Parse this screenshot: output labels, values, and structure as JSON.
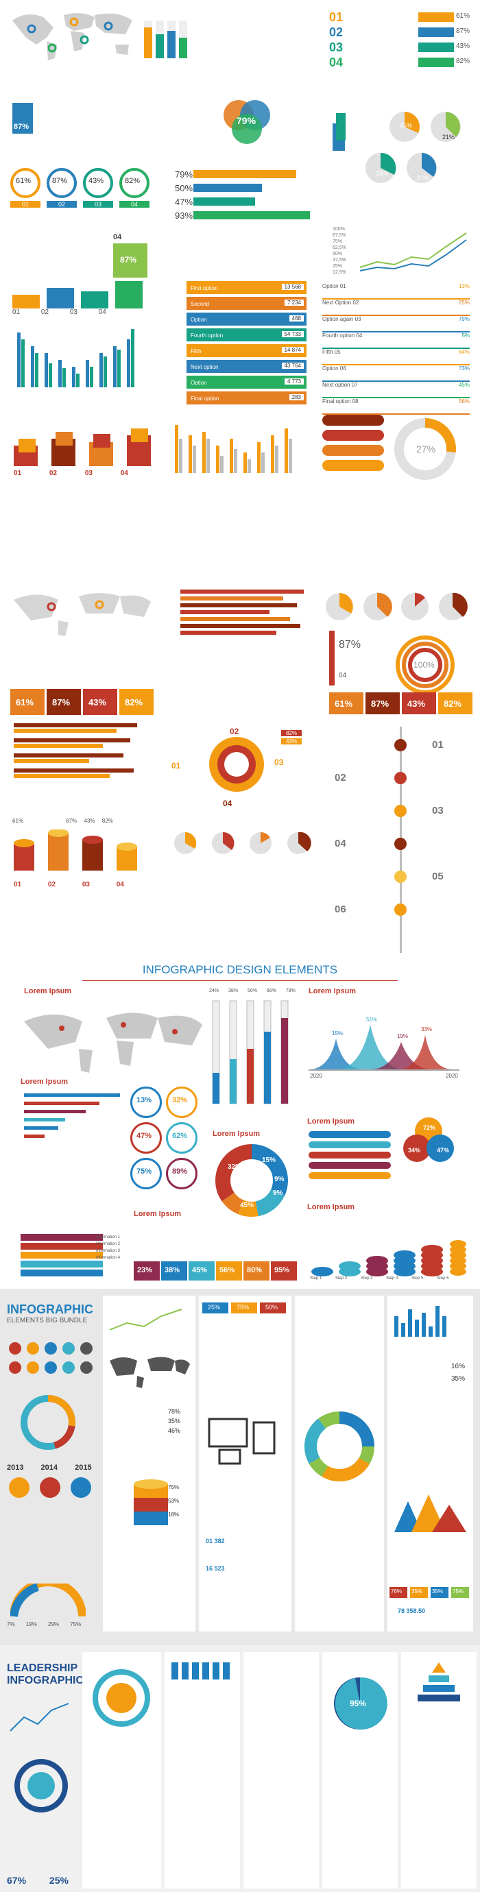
{
  "sheet1": {
    "numbers_list": [
      "01",
      "02",
      "03",
      "04"
    ],
    "right_percents": [
      "61%",
      "87%",
      "43%",
      "82%"
    ],
    "badge_87": "87%",
    "venn_percent": "79%",
    "pies_percents": [
      "45%",
      "21%",
      "33%",
      "27%"
    ],
    "donut_percents": [
      "61%",
      "87%",
      "43%",
      "82%"
    ],
    "donut_steps": [
      "01",
      "02",
      "03",
      "04"
    ],
    "people_percents": [
      "79%",
      "50%",
      "47%",
      "93%"
    ],
    "bar_badge": "87%",
    "bar_badge_num": "04",
    "line_y_ticks": [
      "100%",
      "87,5%",
      "75%",
      "62,5%",
      "50%",
      "37,5%",
      "25%",
      "12,5%",
      "0%"
    ],
    "line_x_ticks": [
      "01",
      "02",
      "03",
      "04",
      "05",
      "06"
    ],
    "grid_steps": [
      "01",
      "02",
      "03",
      "04"
    ],
    "options": [
      {
        "label": "First option",
        "value": "13 568",
        "color": "#f39c12"
      },
      {
        "label": "Second",
        "value": "7 234",
        "color": "#e67e22"
      },
      {
        "label": "Option",
        "value": "468",
        "color": "#2980b9"
      },
      {
        "label": "Fourth option",
        "value": "54 733",
        "color": "#16a085"
      },
      {
        "label": "Fifth",
        "value": "14 874",
        "color": "#f39c12"
      },
      {
        "label": "Next option",
        "value": "43 764",
        "color": "#2c7fb8"
      },
      {
        "label": "Option",
        "value": "4 773",
        "color": "#27ae60"
      },
      {
        "label": "Final option",
        "value": "283",
        "color": "#e67e22"
      }
    ],
    "option_bars": [
      {
        "label": "Option 01",
        "value": "13%"
      },
      {
        "label": "Next Option 02",
        "value": "25%"
      },
      {
        "label": "Option again 03",
        "value": "79%"
      },
      {
        "label": "Fourth option 04",
        "value": "5%"
      },
      {
        "label": "Fifth 05",
        "value": "64%"
      },
      {
        "label": "Option 06",
        "value": "73%"
      },
      {
        "label": "Next option 07",
        "value": "45%"
      },
      {
        "label": "Final option 08",
        "value": "56%"
      }
    ]
  },
  "sheet2": {
    "cubes_steps": [
      "01",
      "02",
      "03",
      "04"
    ],
    "donut_pct": "27%",
    "badge_87": "87%",
    "badge_04": "04",
    "ring_pct": "100%",
    "stripe_pcts": [
      "61%",
      "87%",
      "43%",
      "82%"
    ],
    "stripe_pcts_right": [
      "61%",
      "87%",
      "43%",
      "82%"
    ],
    "flower_steps": [
      "01",
      "02",
      "03",
      "04"
    ],
    "flower_pcts": [
      "82%",
      "43%"
    ],
    "timeline": [
      "01",
      "02",
      "03",
      "04",
      "05",
      "06"
    ],
    "hbar_pcts": [
      "61%",
      "87%",
      "43%",
      "82%"
    ],
    "cyl_steps": [
      "01",
      "02",
      "03",
      "04"
    ]
  },
  "sheet3": {
    "title": "INFOGRAPHIC DESIGN ELEMENTS",
    "lorem": "Lorem Ipsum",
    "circle_pcts": [
      "13%",
      "32%",
      "47%",
      "62%",
      "75%",
      "89%"
    ],
    "donut_pcts": [
      "32%",
      "15%",
      "9%",
      "9%",
      "45%"
    ],
    "arrow_pcts": [
      "23%",
      "38%",
      "45%",
      "56%",
      "80%",
      "95%"
    ],
    "mountain_pcts": [
      "15%",
      "51%",
      "33%",
      "19%"
    ],
    "mountain_years": [
      "2020",
      "2020"
    ],
    "drop_pcts": [
      "72%",
      "34%",
      "47%"
    ],
    "step_labels": [
      "Step 1",
      "Step 2",
      "Step 3",
      "Step 4",
      "Step 5",
      "Step 6"
    ],
    "infos": [
      "Information 1",
      "Information 2",
      "Information 3",
      "Information 4"
    ],
    "therm_pcts": [
      "24%",
      "38%",
      "50%",
      "66%",
      "78%"
    ]
  },
  "sheet4": {
    "title1": "INFOGRAPHIC",
    "title2": "ELEMENTS BIG BUNDLE",
    "years": [
      "2013",
      "2014",
      "2015"
    ],
    "pcts_top": [
      "25%",
      "75%",
      "50%"
    ],
    "people_pcts": [
      "78%",
      "35%",
      "46%"
    ],
    "right_pcts": [
      "16%",
      "35%"
    ],
    "stack_pcts": [
      "75%",
      "53%",
      "18%"
    ],
    "chips": [
      "76%",
      "35%",
      "35%",
      "75%"
    ],
    "bottom_pcts": [
      "7%",
      "19%",
      "29%",
      "75%"
    ],
    "blue_nums": [
      "01 382",
      "16 523"
    ],
    "donut_mid": "78 358.50"
  },
  "sheet5": {
    "title1": "LEADERSHIP",
    "title2": "INFOGRAPHIC",
    "pcts": [
      "67%",
      "25%",
      "95%"
    ]
  }
}
